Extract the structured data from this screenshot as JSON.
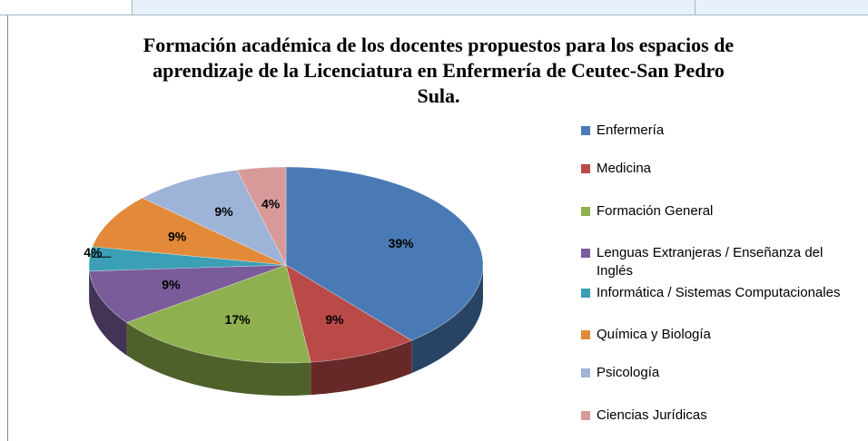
{
  "chart_data": {
    "type": "pie",
    "title": "Formación académica de los docentes propuestos para los espacios de aprendizaje de la Licenciatura en Enfermería de Ceutec-San Pedro Sula.",
    "categories": [
      "Enfermería",
      "Medicina",
      "Formación General",
      "Lenguas Extranjeras / Enseñanza del Inglés",
      "Informática / Sistemas Computacionales",
      "Química y Biología",
      "Psicología",
      "Ciencias Jurídicas"
    ],
    "values": [
      39,
      9,
      17,
      9,
      4,
      9,
      9,
      4
    ],
    "value_labels": [
      "39%",
      "9%",
      "17%",
      "9%",
      "4%",
      "9%",
      "9%",
      "4%"
    ],
    "colors": [
      "#4a7ab5",
      "#b94a48",
      "#8fb04f",
      "#7a5c9a",
      "#3b9fb5",
      "#e28a3a",
      "#9db3d8",
      "#d89a98"
    ],
    "legend": "right"
  }
}
